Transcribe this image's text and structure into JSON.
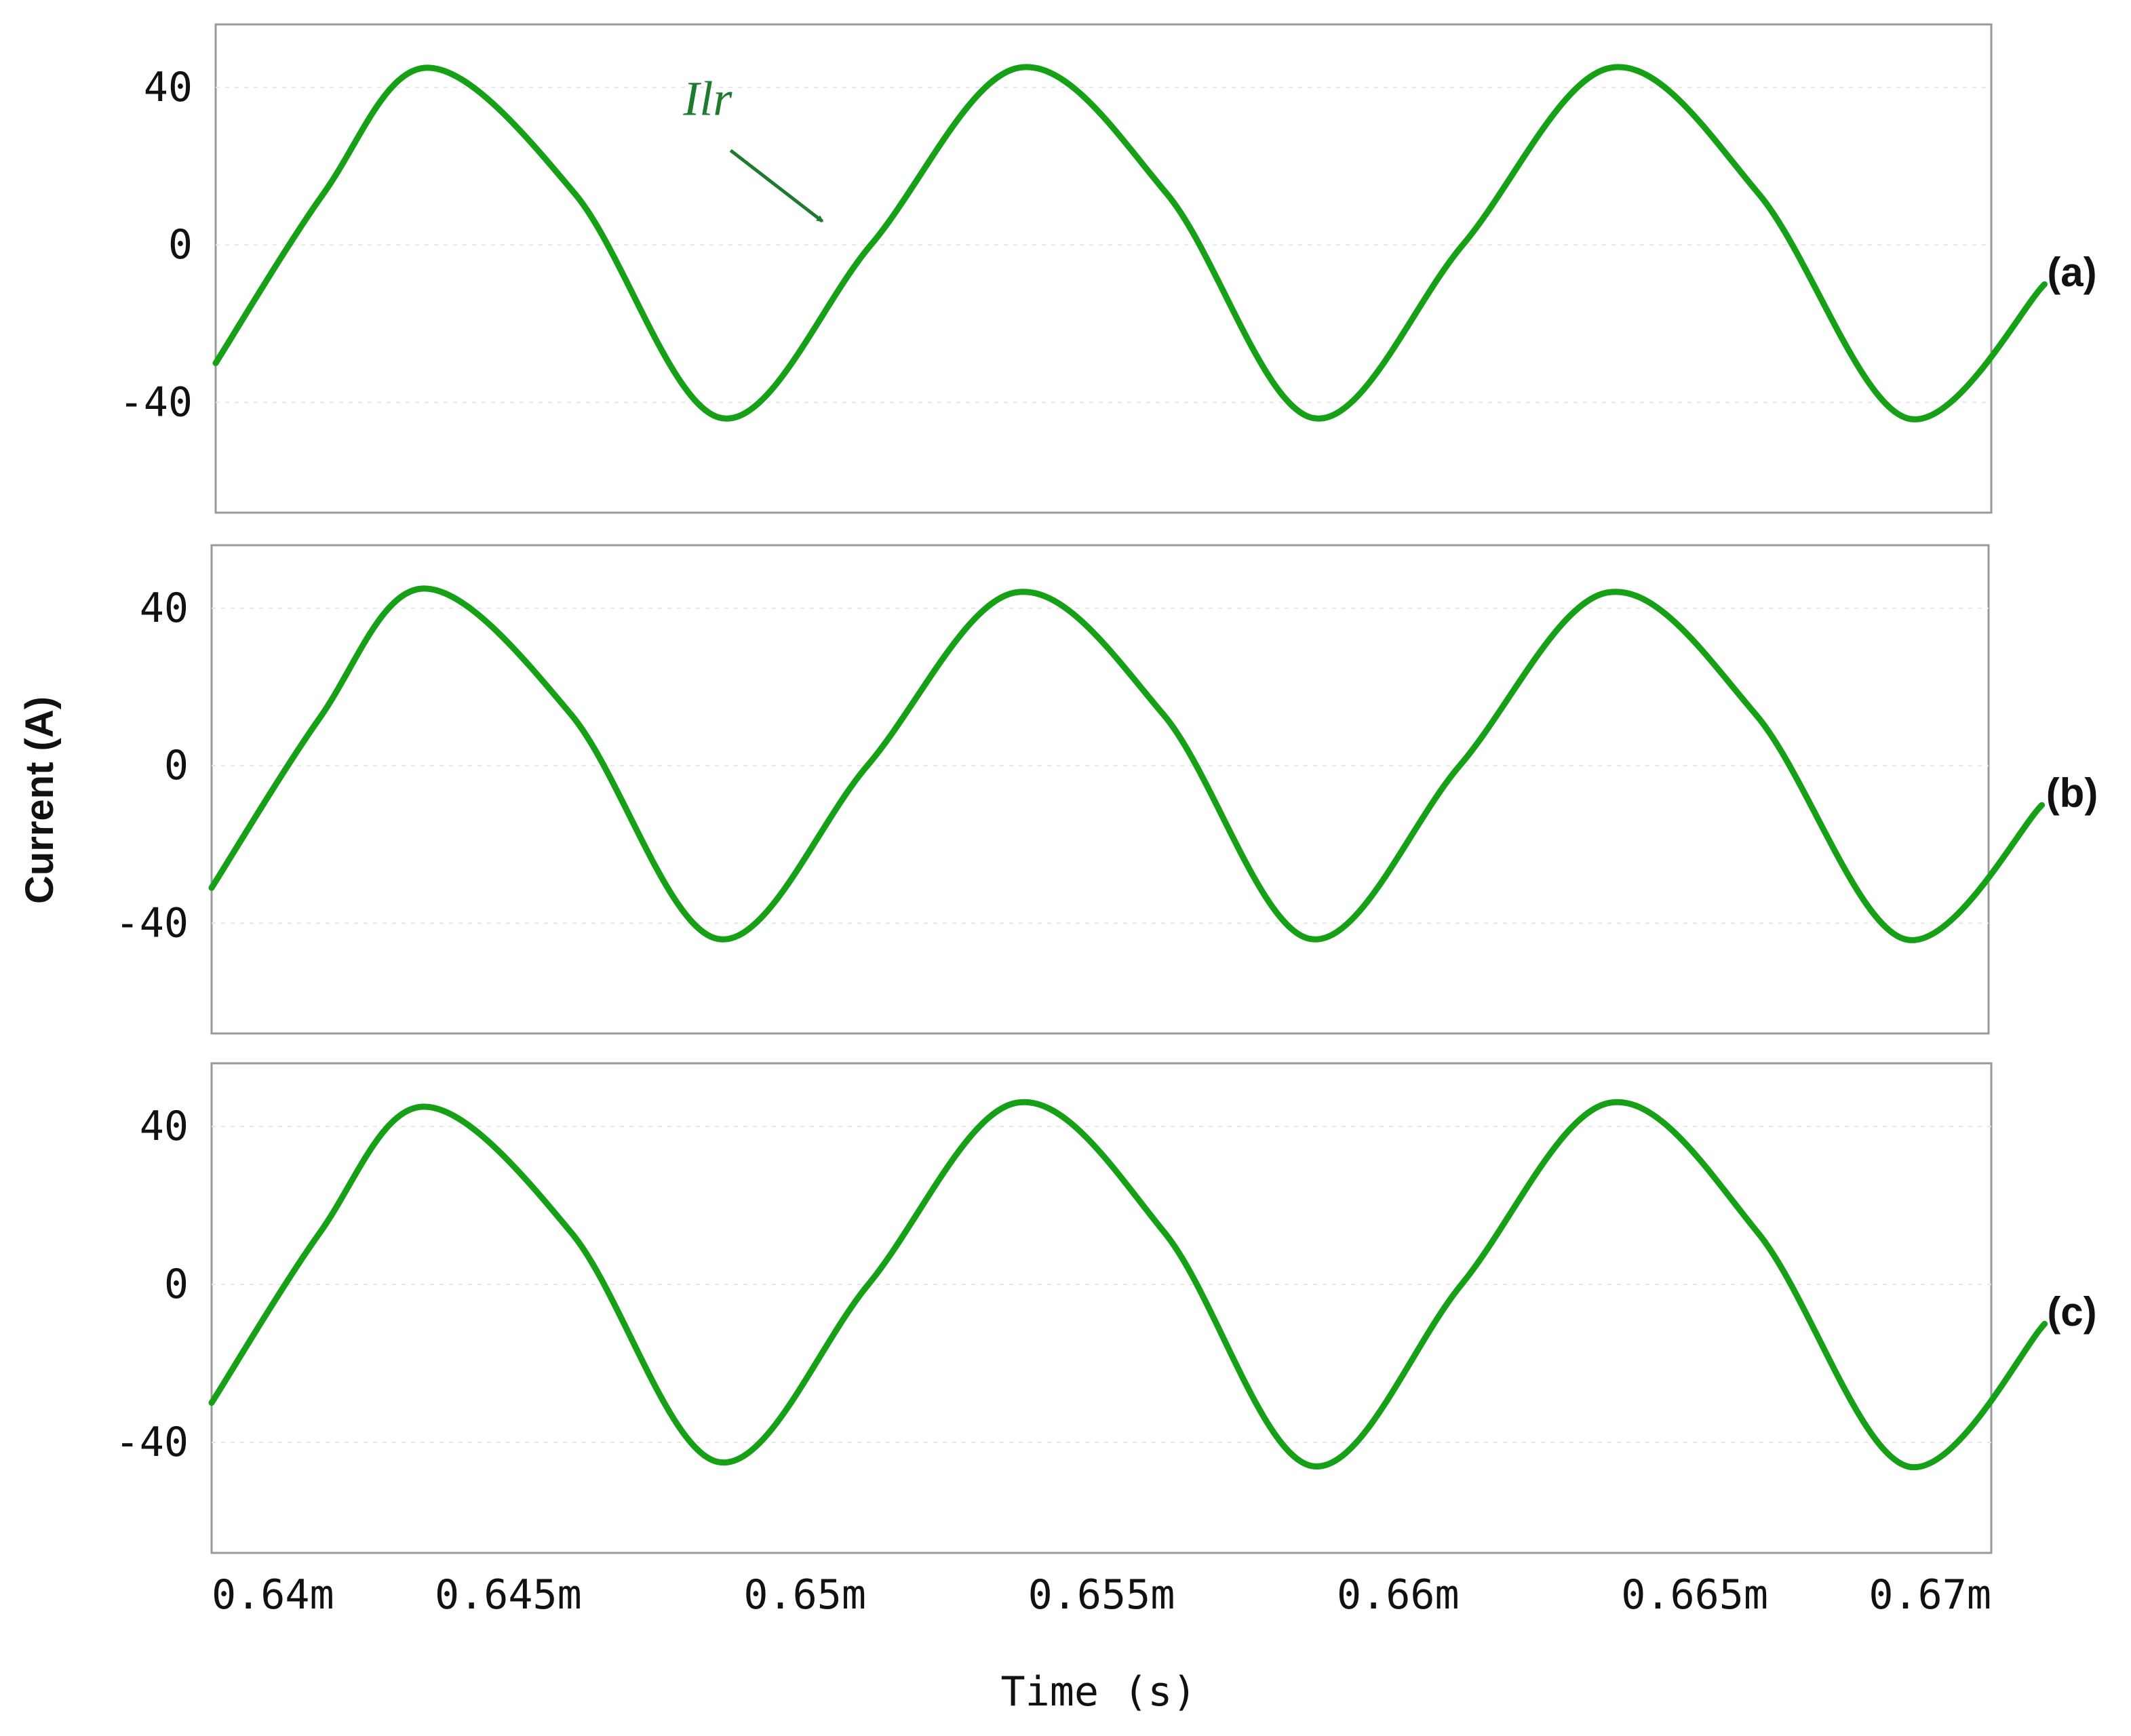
{
  "colors": {
    "trace": "#16a016",
    "frame": "#9a9a9a",
    "text": "#111111"
  },
  "chart_data": {
    "type": "line",
    "ylabel": "Current (A)",
    "xlabel": "Time (s)",
    "xlim": [
      0.64,
      0.67
    ],
    "x_ticks": [
      {
        "v": 0.64,
        "label": "0.64m"
      },
      {
        "v": 0.645,
        "label": "0.645m"
      },
      {
        "v": 0.65,
        "label": "0.65m"
      },
      {
        "v": 0.655,
        "label": "0.655m"
      },
      {
        "v": 0.66,
        "label": "0.66m"
      },
      {
        "v": 0.665,
        "label": "0.665m"
      },
      {
        "v": 0.67,
        "label": "0.67m"
      }
    ],
    "y_ticks": [
      {
        "v": 40,
        "label": "40"
      },
      {
        "v": 0,
        "label": "0"
      },
      {
        "v": -40,
        "label": "-40"
      }
    ],
    "ylim": [
      -68,
      56
    ],
    "grid": true,
    "legend": "none",
    "panels": [
      {
        "label": "(a)",
        "annotation": {
          "text": "Ilr",
          "x": 0.6479,
          "y": 33
        },
        "arrow": {
          "x1": 0.6487,
          "y1": 24,
          "x2": 0.65025,
          "y2": 6
        },
        "series": [
          {
            "x": [
              0.64,
              0.64182,
              0.64358,
              0.64607,
              0.64855,
              0.65107,
              0.65357,
              0.65607,
              0.65855,
              0.66107,
              0.66357,
              0.66607,
              0.66857,
              0.6709
            ],
            "y": [
              -30,
              13,
              45,
              13,
              -44,
              0,
              45,
              13,
              -44,
              0,
              45,
              13,
              -44,
              -10
            ]
          }
        ]
      },
      {
        "label": "(b)",
        "series": [
          {
            "x": [
              0.64,
              0.64182,
              0.64358,
              0.64607,
              0.64855,
              0.65107,
              0.65357,
              0.65607,
              0.65855,
              0.66107,
              0.66357,
              0.66607,
              0.66857,
              0.6709
            ],
            "y": [
              -31,
              12,
              45,
              13,
              -44,
              0,
              44,
              13,
              -44,
              0,
              44,
              13,
              -44,
              -10
            ]
          }
        ]
      },
      {
        "label": "(c)",
        "series": [
          {
            "x": [
              0.64,
              0.64182,
              0.64358,
              0.64607,
              0.64855,
              0.65107,
              0.65357,
              0.65607,
              0.65855,
              0.66107,
              0.66357,
              0.66607,
              0.66857,
              0.6709
            ],
            "y": [
              -30,
              13,
              45,
              13,
              -45,
              0,
              46,
              13,
              -46,
              0,
              46,
              13,
              -46,
              -10
            ]
          }
        ]
      }
    ]
  }
}
